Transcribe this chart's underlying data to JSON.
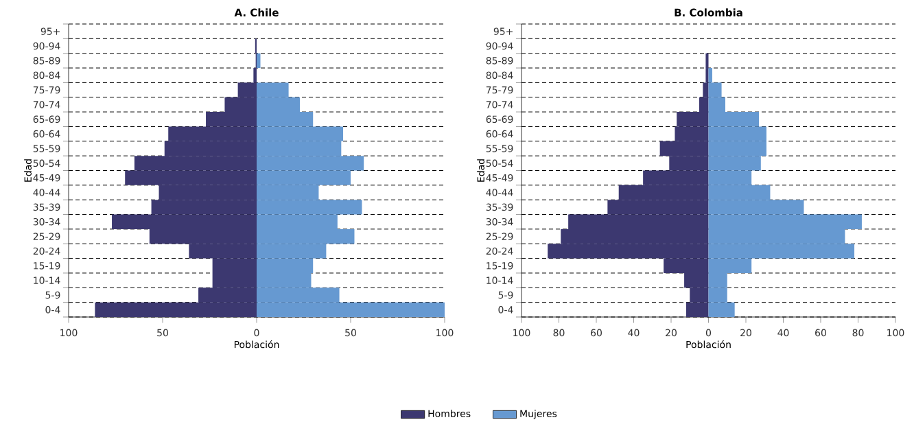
{
  "chart_data": [
    {
      "type": "bar",
      "orientation": "horizontal",
      "title": "A. Chile",
      "xlabel": "Población",
      "ylabel": "Edad",
      "categories": [
        "95+",
        "90-94",
        "85-89",
        "80-84",
        "75-79",
        "70-74",
        "65-69",
        "60-64",
        "55-59",
        "50-54",
        "45-49",
        "40-44",
        "35-39",
        "30-34",
        "25-29",
        "20-24",
        "15-19",
        "10-14",
        "5-9",
        "0-4"
      ],
      "series": [
        {
          "name": "Hombres",
          "color": "#3c3870",
          "values": [
            0,
            -0.8,
            -0.5,
            -1.7,
            -10,
            -17,
            -27,
            -47,
            -49,
            -65,
            -70,
            -52,
            -56,
            -77,
            -57,
            -36,
            -23.5,
            -23.5,
            -31,
            -86
          ]
        },
        {
          "name": "Mujeres",
          "color": "#6699d1",
          "values": [
            0,
            0,
            2,
            0,
            17,
            23,
            30,
            46,
            45,
            57,
            50,
            33,
            56,
            43,
            52,
            37,
            30,
            29,
            44,
            100
          ]
        }
      ],
      "xlim": [
        -100,
        100
      ],
      "xticks": [
        {
          "value": -100,
          "label": "100"
        },
        {
          "value": -50,
          "label": "50"
        },
        0,
        50,
        100
      ],
      "grid": "y",
      "legend": "bottom",
      "stacked": true
    },
    {
      "type": "bar",
      "orientation": "horizontal",
      "title": "B. Colombia",
      "xlabel": "Población",
      "ylabel": "Edad",
      "categories": [
        "95+",
        "90-94",
        "85-89",
        "80-84",
        "75-79",
        "70-74",
        "65-69",
        "60-64",
        "55-59",
        "50-54",
        "45-49",
        "40-44",
        "35-39",
        "30-34",
        "25-29",
        "20-24",
        "15-19",
        "10-14",
        "5-9",
        "0-4"
      ],
      "series": [
        {
          "color": "#3c3870",
          "values": [
            0,
            0,
            -1.5,
            -1.5,
            -3,
            -5,
            -17,
            -18,
            -26,
            -21,
            -35,
            -48,
            -54,
            -75,
            -79,
            -86,
            -24,
            -13,
            -10,
            -12
          ]
        },
        {
          "color": "#6699d1",
          "values": [
            0,
            0,
            0,
            2,
            7,
            9,
            27,
            31,
            31,
            28,
            23,
            33,
            51,
            82,
            73,
            78,
            23,
            10,
            10,
            14
          ]
        }
      ],
      "xlim": [
        -100,
        100
      ],
      "xticks": [
        {
          "value": -100,
          "label": "100"
        },
        {
          "value": -80,
          "label": "80"
        },
        {
          "value": -60,
          "label": "60"
        },
        {
          "value": -40,
          "label": "40"
        },
        {
          "value": -20,
          "label": "20"
        },
        0,
        20,
        40,
        60,
        80,
        100
      ],
      "grid": "y",
      "stacked": true
    }
  ]
}
